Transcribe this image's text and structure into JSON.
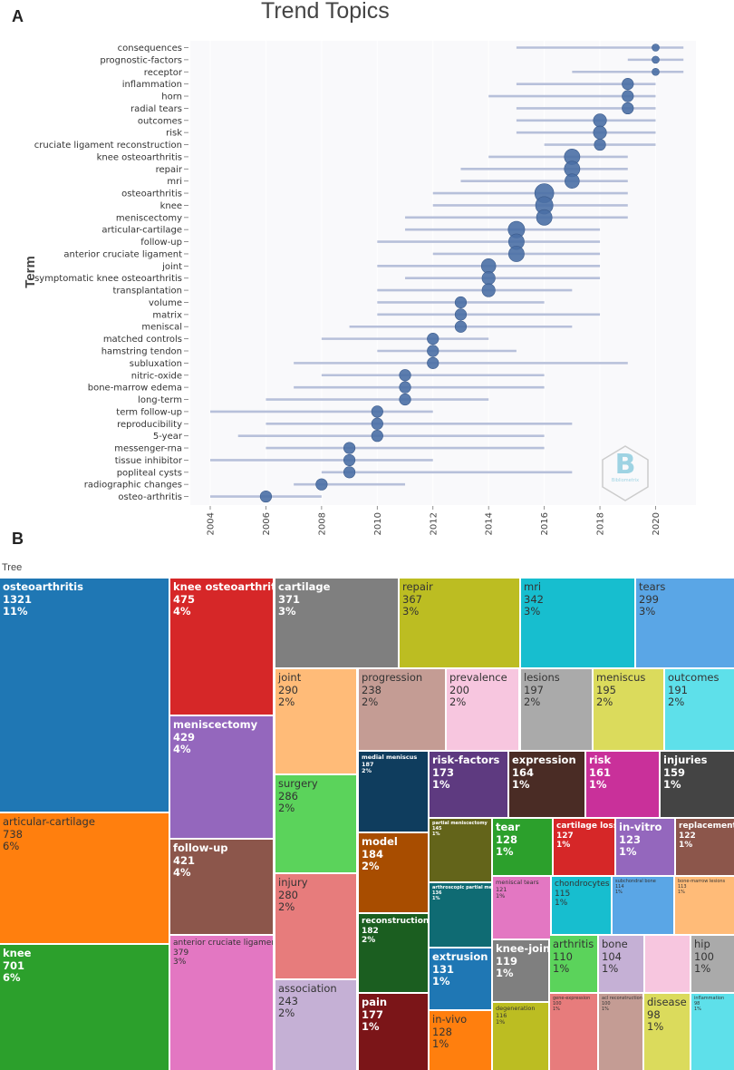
{
  "panel_a_letter": "A",
  "panel_b_letter": "B",
  "chart_data": [
    {
      "type": "scatter",
      "title": "Trend Topics",
      "ylabel": "Term",
      "xlabel": "",
      "xlim": [
        2004,
        2021
      ],
      "xticks": [
        2004,
        2006,
        2008,
        2010,
        2012,
        2014,
        2016,
        2018,
        2020
      ],
      "watermark": "Bibliometrix",
      "terms": [
        {
          "term": "consequences",
          "median": 2020,
          "q1": 2015,
          "q3": 2021,
          "freq": 2
        },
        {
          "term": "prognostic-factors",
          "median": 2020,
          "q1": 2019,
          "q3": 2021,
          "freq": 2
        },
        {
          "term": "receptor",
          "median": 2020,
          "q1": 2017,
          "q3": 2021,
          "freq": 2
        },
        {
          "term": "inflammation",
          "median": 2019,
          "q1": 2015,
          "q3": 2020,
          "freq": 3
        },
        {
          "term": "horn",
          "median": 2019,
          "q1": 2014,
          "q3": 2020,
          "freq": 3
        },
        {
          "term": "radial tears",
          "median": 2019,
          "q1": 2015,
          "q3": 2020,
          "freq": 3
        },
        {
          "term": "outcomes",
          "median": 2018,
          "q1": 2015,
          "q3": 2020,
          "freq": 4
        },
        {
          "term": "risk",
          "median": 2018,
          "q1": 2015,
          "q3": 2020,
          "freq": 4
        },
        {
          "term": "cruciate ligament reconstruction",
          "median": 2018,
          "q1": 2016,
          "q3": 2020,
          "freq": 3
        },
        {
          "term": "knee osteoarthritis",
          "median": 2017,
          "q1": 2014,
          "q3": 2019,
          "freq": 6
        },
        {
          "term": "repair",
          "median": 2017,
          "q1": 2013,
          "q3": 2019,
          "freq": 6
        },
        {
          "term": "mri",
          "median": 2017,
          "q1": 2013,
          "q3": 2019,
          "freq": 5
        },
        {
          "term": "osteoarthritis",
          "median": 2016,
          "q1": 2012,
          "q3": 2019,
          "freq": 10
        },
        {
          "term": "knee",
          "median": 2016,
          "q1": 2012,
          "q3": 2019,
          "freq": 8
        },
        {
          "term": "meniscectomy",
          "median": 2016,
          "q1": 2011,
          "q3": 2019,
          "freq": 6
        },
        {
          "term": "articular-cartilage",
          "median": 2015,
          "q1": 2011,
          "q3": 2018,
          "freq": 7
        },
        {
          "term": "follow-up",
          "median": 2015,
          "q1": 2010,
          "q3": 2018,
          "freq": 6
        },
        {
          "term": "anterior cruciate ligament",
          "median": 2015,
          "q1": 2012,
          "q3": 2018,
          "freq": 6
        },
        {
          "term": "joint",
          "median": 2014,
          "q1": 2010,
          "q3": 2018,
          "freq": 5
        },
        {
          "term": "symptomatic knee osteoarthritis",
          "median": 2014,
          "q1": 2011,
          "q3": 2018,
          "freq": 4
        },
        {
          "term": "transplantation",
          "median": 2014,
          "q1": 2010,
          "q3": 2017,
          "freq": 4
        },
        {
          "term": "volume",
          "median": 2013,
          "q1": 2010,
          "q3": 2016,
          "freq": 3
        },
        {
          "term": "matrix",
          "median": 2013,
          "q1": 2010,
          "q3": 2018,
          "freq": 3
        },
        {
          "term": "meniscal",
          "median": 2013,
          "q1": 2009,
          "q3": 2017,
          "freq": 3
        },
        {
          "term": "matched controls",
          "median": 2012,
          "q1": 2008,
          "q3": 2014,
          "freq": 3
        },
        {
          "term": "hamstring tendon",
          "median": 2012,
          "q1": 2010,
          "q3": 2015,
          "freq": 3
        },
        {
          "term": "subluxation",
          "median": 2012,
          "q1": 2007,
          "q3": 2019,
          "freq": 3
        },
        {
          "term": "nitric-oxide",
          "median": 2011,
          "q1": 2008,
          "q3": 2016,
          "freq": 3
        },
        {
          "term": "bone-marrow edema",
          "median": 2011,
          "q1": 2007,
          "q3": 2016,
          "freq": 3
        },
        {
          "term": "long-term",
          "median": 2011,
          "q1": 2006,
          "q3": 2014,
          "freq": 3
        },
        {
          "term": "term follow-up",
          "median": 2010,
          "q1": 2004,
          "q3": 2012,
          "freq": 3
        },
        {
          "term": "reproducibility",
          "median": 2010,
          "q1": 2006,
          "q3": 2017,
          "freq": 3
        },
        {
          "term": "5-year",
          "median": 2010,
          "q1": 2005,
          "q3": 2016,
          "freq": 3
        },
        {
          "term": "messenger-rna",
          "median": 2009,
          "q1": 2006,
          "q3": 2016,
          "freq": 3
        },
        {
          "term": "tissue inhibitor",
          "median": 2009,
          "q1": 2004,
          "q3": 2012,
          "freq": 3
        },
        {
          "term": "popliteal cysts",
          "median": 2009,
          "q1": 2008,
          "q3": 2017,
          "freq": 3
        },
        {
          "term": "radiographic changes",
          "median": 2008,
          "q1": 2007,
          "q3": 2011,
          "freq": 3
        },
        {
          "term": "osteo-arthritis",
          "median": 2006,
          "q1": 2004,
          "q3": 2008,
          "freq": 3
        }
      ]
    },
    {
      "type": "treemap",
      "title": "Tree",
      "tiles": [
        {
          "name": "osteoarthritis",
          "value": "1321",
          "pct": "11%",
          "color": "#1f77b4",
          "text": "#ffffff"
        },
        {
          "name": "articular-cartilage",
          "value": "738",
          "pct": "6%",
          "color": "#ff7f0e",
          "text": "#333333"
        },
        {
          "name": "knee",
          "value": "701",
          "pct": "6%",
          "color": "#2ca02c",
          "text": "#ffffff"
        },
        {
          "name": "knee osteoarthritis",
          "value": "475",
          "pct": "4%",
          "color": "#d62728",
          "text": "#ffffff"
        },
        {
          "name": "meniscectomy",
          "value": "429",
          "pct": "4%",
          "color": "#9467bd",
          "text": "#ffffff"
        },
        {
          "name": "follow-up",
          "value": "421",
          "pct": "4%",
          "color": "#8c564b",
          "text": "#ffffff"
        },
        {
          "name": "anterior cruciate ligament",
          "value": "379",
          "pct": "3%",
          "color": "#e377c2",
          "text": "#333333"
        },
        {
          "name": "cartilage",
          "value": "371",
          "pct": "3%",
          "color": "#7f7f7f",
          "text": "#ffffff"
        },
        {
          "name": "joint",
          "value": "290",
          "pct": "2%",
          "color": "#ffbb78",
          "text": "#333333"
        },
        {
          "name": "surgery",
          "value": "286",
          "pct": "2%",
          "color": "#5bd35b",
          "text": "#333333"
        },
        {
          "name": "injury",
          "value": "280",
          "pct": "2%",
          "color": "#e77c7c",
          "text": "#333333"
        },
        {
          "name": "association",
          "value": "243",
          "pct": "2%",
          "color": "#c5b0d5",
          "text": "#333333"
        },
        {
          "name": "repair",
          "value": "367",
          "pct": "3%",
          "color": "#bcbd22",
          "text": "#333333"
        },
        {
          "name": "mri",
          "value": "342",
          "pct": "3%",
          "color": "#17becf",
          "text": "#333333"
        },
        {
          "name": "tears",
          "value": "299",
          "pct": "3%",
          "color": "#5aa6e6",
          "text": "#333333"
        },
        {
          "name": "progression",
          "value": "238",
          "pct": "2%",
          "color": "#c49c94",
          "text": "#333333"
        },
        {
          "name": "prevalence",
          "value": "200",
          "pct": "2%",
          "color": "#f7c6df",
          "text": "#333333"
        },
        {
          "name": "lesions",
          "value": "197",
          "pct": "2%",
          "color": "#aaaaaa",
          "text": "#333333"
        },
        {
          "name": "meniscus",
          "value": "195",
          "pct": "2%",
          "color": "#dbdb5c",
          "text": "#333333"
        },
        {
          "name": "outcomes",
          "value": "191",
          "pct": "2%",
          "color": "#5ee0ea",
          "text": "#333333"
        },
        {
          "name": "medial meniscus",
          "value": "187",
          "pct": "2%",
          "color": "#0f3d5e",
          "text": "#ffffff"
        },
        {
          "name": "model",
          "value": "184",
          "pct": "2%",
          "color": "#a84d00",
          "text": "#ffffff"
        },
        {
          "name": "reconstruction",
          "value": "182",
          "pct": "2%",
          "color": "#1b5e20",
          "text": "#ffffff"
        },
        {
          "name": "pain",
          "value": "177",
          "pct": "1%",
          "color": "#7b1518",
          "text": "#ffffff"
        },
        {
          "name": "risk-factors",
          "value": "173",
          "pct": "1%",
          "color": "#5e3a80",
          "text": "#ffffff"
        },
        {
          "name": "expression",
          "value": "164",
          "pct": "1%",
          "color": "#4a2c25",
          "text": "#ffffff"
        },
        {
          "name": "risk",
          "value": "161",
          "pct": "1%",
          "color": "#c9309a",
          "text": "#ffffff"
        },
        {
          "name": "injuries",
          "value": "159",
          "pct": "1%",
          "color": "#444444",
          "text": "#ffffff"
        },
        {
          "name": "partial meniscectomy",
          "value": "145",
          "pct": "1%",
          "color": "#63641a",
          "text": "#ffffff"
        },
        {
          "name": "arthroscopic partial meniscectomy",
          "value": "136",
          "pct": "1%",
          "color": "#0f6b73",
          "text": "#ffffff"
        },
        {
          "name": "extrusion",
          "value": "131",
          "pct": "1%",
          "color": "#1f77b4",
          "text": "#ffffff"
        },
        {
          "name": "in-vivo",
          "value": "128",
          "pct": "1%",
          "color": "#ff7f0e",
          "text": "#333333"
        },
        {
          "name": "tear",
          "value": "128",
          "pct": "1%",
          "color": "#2ca02c",
          "text": "#ffffff"
        },
        {
          "name": "cartilage loss",
          "value": "127",
          "pct": "1%",
          "color": "#d62728",
          "text": "#ffffff"
        },
        {
          "name": "in-vitro",
          "value": "123",
          "pct": "1%",
          "color": "#9467bd",
          "text": "#ffffff"
        },
        {
          "name": "replacement",
          "value": "122",
          "pct": "1%",
          "color": "#8c564b",
          "text": "#ffffff"
        },
        {
          "name": "meniscal tears",
          "value": "121",
          "pct": "1%",
          "color": "#e377c2",
          "text": "#333333"
        },
        {
          "name": "knee-joint",
          "value": "119",
          "pct": "1%",
          "color": "#7f7f7f",
          "text": "#ffffff"
        },
        {
          "name": "degeneration",
          "value": "116",
          "pct": "1%",
          "color": "#bcbd22",
          "text": "#333333"
        },
        {
          "name": "chondrocytes",
          "value": "115",
          "pct": "1%",
          "color": "#17becf",
          "text": "#333333"
        },
        {
          "name": "subchondral bone",
          "value": "114",
          "pct": "1%",
          "color": "#5aa6e6",
          "text": "#333333"
        },
        {
          "name": "bone-marrow lesions",
          "value": "113",
          "pct": "1%",
          "color": "#ffbb78",
          "text": "#333333"
        },
        {
          "name": "arthritis",
          "value": "110",
          "pct": "1%",
          "color": "#5bd35b",
          "text": "#333333"
        },
        {
          "name": "bone",
          "value": "104",
          "pct": "1%",
          "color": "#c5b0d5",
          "text": "#333333"
        },
        {
          "name": "hip",
          "value": "100",
          "pct": "1%",
          "color": "#aaaaaa",
          "text": "#333333"
        },
        {
          "name": "gene-expression",
          "value": "100",
          "pct": "1%",
          "color": "#e77c7c",
          "text": "#333333"
        },
        {
          "name": "acl reconstruction",
          "value": "100",
          "pct": "1%",
          "color": "#c49c94",
          "text": "#333333"
        },
        {
          "name": "disease",
          "value": "98",
          "pct": "1%",
          "color": "#dbdb5c",
          "text": "#333333"
        },
        {
          "name": "inflammation",
          "value": "98",
          "pct": "1%",
          "color": "#5ee0ea",
          "text": "#333333"
        },
        {
          "name": "",
          "value": "",
          "pct": "",
          "color": "#f7c6df",
          "text": "#333333"
        }
      ]
    }
  ]
}
